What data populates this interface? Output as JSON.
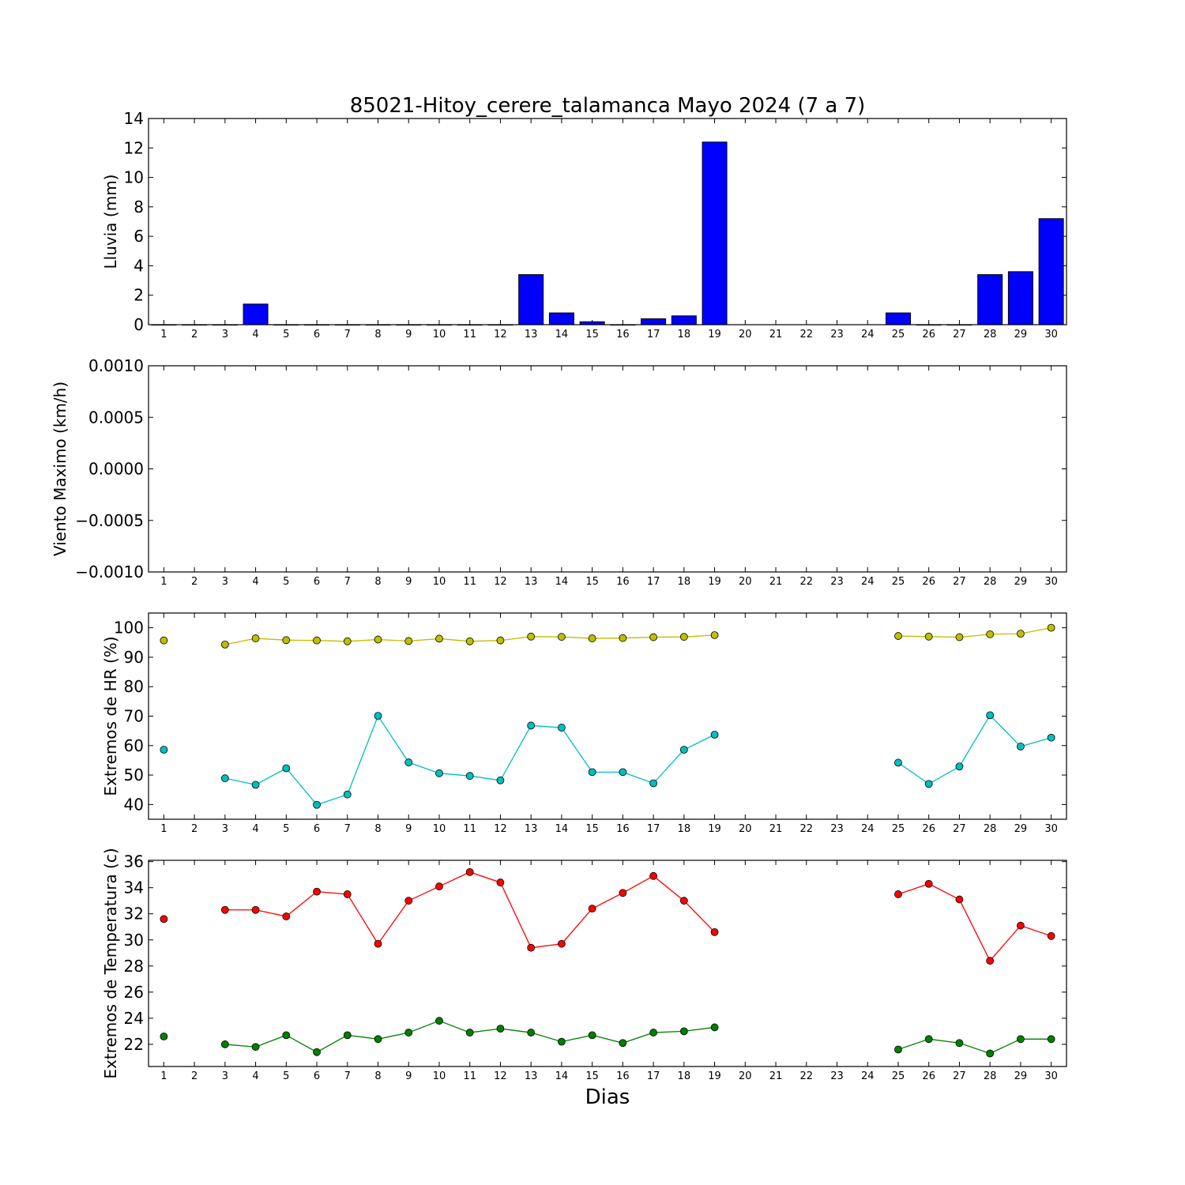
{
  "title": "85021-Hitoy_cerere_talamanca Mayo 2024  (7 a 7)",
  "xlabel": "Dias",
  "chart_data": [
    {
      "type": "bar",
      "name": "lluvia",
      "ylabel": "Lluvia (mm)",
      "ylim": [
        0,
        14
      ],
      "yticks": [
        "0",
        "2",
        "4",
        "6",
        "8",
        "10",
        "12",
        "14"
      ],
      "x": [
        1,
        2,
        3,
        4,
        5,
        6,
        7,
        8,
        9,
        10,
        11,
        12,
        13,
        14,
        15,
        16,
        17,
        18,
        19,
        20,
        21,
        22,
        23,
        24,
        25,
        26,
        27,
        28,
        29,
        30
      ],
      "values": [
        0,
        0,
        0,
        1.4,
        0,
        0,
        0,
        0,
        0,
        0,
        0,
        0,
        3.4,
        0.8,
        0.2,
        0,
        0.4,
        0.6,
        12.4,
        null,
        null,
        null,
        null,
        null,
        0.8,
        0,
        0,
        3.4,
        3.6,
        7.2
      ],
      "colors": {
        "bar": "#0000ff"
      }
    },
    {
      "type": "line",
      "name": "viento",
      "ylabel": "Viento Maximo (km/h)",
      "ylim": [
        -0.001,
        0.001
      ],
      "yticks": [
        "−0.0010",
        "−0.0005",
        "0.0000",
        "0.0005",
        "0.0010"
      ],
      "x": [
        1,
        2,
        3,
        4,
        5,
        6,
        7,
        8,
        9,
        10,
        11,
        12,
        13,
        14,
        15,
        16,
        17,
        18,
        19,
        20,
        21,
        22,
        23,
        24,
        25,
        26,
        27,
        28,
        29,
        30
      ],
      "series": []
    },
    {
      "type": "line",
      "name": "humedad",
      "ylabel": "Extremos de HR (%)",
      "ylim": [
        35,
        105
      ],
      "yticks": [
        "40",
        "50",
        "60",
        "70",
        "80",
        "90",
        "100"
      ],
      "x": [
        1,
        2,
        3,
        4,
        5,
        6,
        7,
        8,
        9,
        10,
        11,
        12,
        13,
        14,
        15,
        16,
        17,
        18,
        19,
        20,
        21,
        22,
        23,
        24,
        25,
        26,
        27,
        28,
        29,
        30
      ],
      "series": [
        {
          "color": "#bfbf00",
          "values": [
            95.7,
            null,
            94.3,
            96.4,
            95.8,
            95.7,
            95.4,
            96.0,
            95.5,
            96.3,
            95.4,
            95.7,
            97.0,
            96.9,
            96.4,
            96.5,
            96.8,
            96.9,
            97.5,
            null,
            null,
            null,
            null,
            null,
            97.2,
            97.0,
            96.8,
            97.8,
            98.0,
            100.0
          ]
        },
        {
          "color": "#00bfbf",
          "values": [
            58.6,
            null,
            48.9,
            46.7,
            52.3,
            39.9,
            43.4,
            70.1,
            54.3,
            50.6,
            49.7,
            48.2,
            66.8,
            66.1,
            51.0,
            51.0,
            47.2,
            58.6,
            63.7,
            null,
            null,
            null,
            null,
            null,
            54.2,
            47.0,
            52.9,
            70.3,
            59.7,
            62.7
          ]
        }
      ]
    },
    {
      "type": "line",
      "name": "temperatura",
      "ylabel": "Extremos de Temperatura (c)",
      "ylim": [
        20.3,
        36.1
      ],
      "yticks": [
        "22",
        "24",
        "26",
        "28",
        "30",
        "32",
        "34",
        "36"
      ],
      "x": [
        1,
        2,
        3,
        4,
        5,
        6,
        7,
        8,
        9,
        10,
        11,
        12,
        13,
        14,
        15,
        16,
        17,
        18,
        19,
        20,
        21,
        22,
        23,
        24,
        25,
        26,
        27,
        28,
        29,
        30
      ],
      "series": [
        {
          "color": "#ff0000",
          "values": [
            31.6,
            null,
            32.3,
            32.3,
            31.8,
            33.7,
            33.5,
            29.7,
            33.0,
            34.1,
            35.2,
            34.4,
            29.4,
            29.7,
            32.4,
            33.6,
            34.9,
            33.0,
            30.6,
            null,
            null,
            null,
            null,
            null,
            33.5,
            34.3,
            33.1,
            28.4,
            31.1,
            30.3
          ]
        },
        {
          "color": "#008000",
          "values": [
            22.6,
            null,
            22.0,
            21.8,
            22.7,
            21.4,
            22.7,
            22.4,
            22.9,
            23.8,
            22.9,
            23.2,
            22.9,
            22.2,
            22.7,
            22.1,
            22.9,
            23.0,
            23.3,
            null,
            null,
            null,
            null,
            null,
            21.6,
            22.4,
            22.1,
            21.3,
            22.4,
            22.4
          ]
        }
      ]
    }
  ]
}
